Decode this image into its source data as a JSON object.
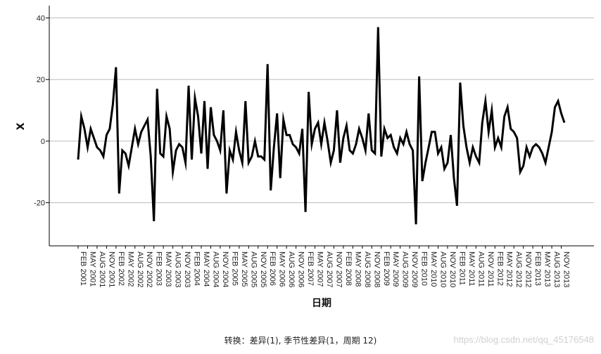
{
  "chart_data": {
    "type": "line",
    "title": "",
    "xlabel": "日期",
    "ylabel": "X",
    "ylim": [
      -34,
      44
    ],
    "yticks": [
      -20,
      0,
      20,
      40
    ],
    "grid": "horizontal",
    "line_color": "#000000",
    "x_tick_labels": [
      "FEB 2001",
      "MAY 2001",
      "AUG 2001",
      "NOV 2001",
      "FEB 2002",
      "MAY 2002",
      "AUG 2002",
      "NOV 2002",
      "FEB 2003",
      "MAY 2003",
      "AUG 2003",
      "NOV 2003",
      "FEB 2004",
      "MAY 2004",
      "AUG 2004",
      "NOV 2004",
      "FEB 2005",
      "MAY 2005",
      "AUG 2005",
      "NOV 2005",
      "FEB 2006",
      "MAY 2006",
      "AUG 2006",
      "NOV 2006",
      "FEB 2007",
      "MAY 2007",
      "AUG 2007",
      "NOV 2007",
      "FEB 2008",
      "MAY 2008",
      "AUG 2008",
      "NOV 2008",
      "FEB 2009",
      "MAY 2009",
      "AUG 2009",
      "NOV 2009",
      "FEB 2010",
      "MAY 2010",
      "AUG 2010",
      "NOV 2010",
      "FEB 2011",
      "MAY 2011",
      "AUG 2011",
      "NOV 2011",
      "FEB 2012",
      "MAY 2012",
      "AUG 2012",
      "NOV 2012",
      "FEB 2013",
      "MAY 2013",
      "AUG 2013",
      "NOV 2013"
    ],
    "series": [
      {
        "name": "",
        "x_start": "FEB 2001",
        "values": [
          -6,
          8,
          4,
          -2,
          4,
          1,
          -2,
          -3,
          -5,
          2,
          4,
          12,
          24,
          -17,
          -3,
          -4,
          -8,
          -2,
          4,
          -1,
          3,
          5,
          7,
          -5,
          -26,
          17,
          -4,
          -5,
          8,
          4,
          -10,
          -3,
          -1,
          -2,
          -7,
          18,
          -6,
          14,
          8,
          -4,
          13,
          -9,
          11,
          2,
          0,
          -3,
          10,
          -17,
          -3,
          -6,
          3,
          -3,
          -7,
          13,
          -7,
          -5,
          0,
          -5,
          -5,
          -6,
          25,
          -16,
          -2,
          9,
          -12,
          7,
          2,
          2,
          -1,
          -2,
          -4,
          4,
          -23,
          16,
          -1,
          4,
          6,
          -1,
          6,
          0,
          -7,
          -3,
          10,
          -7,
          1,
          5,
          -3,
          -4,
          -1,
          4,
          1,
          -3,
          9,
          -3,
          -4,
          37,
          -5,
          4,
          1,
          2,
          -2,
          -4,
          1,
          -1,
          3,
          -1,
          -3,
          -27,
          21,
          -13,
          -7,
          -2,
          3,
          3,
          -4,
          -2,
          -9,
          -7,
          2,
          -12,
          -21,
          19,
          5,
          -2,
          -7,
          -2,
          -5,
          -7,
          6,
          13,
          3,
          10,
          -2,
          1,
          -2,
          8,
          11,
          4,
          3,
          1,
          -10,
          -8,
          -2,
          -5,
          -2,
          -1,
          -2,
          -4,
          -7,
          -2,
          3,
          11,
          13,
          9,
          6
        ]
      }
    ]
  },
  "footnote": "转换：差异(1), 季节性差异(1，周期 12)",
  "watermark": "https://blog.csdn.net/qq_45176548"
}
